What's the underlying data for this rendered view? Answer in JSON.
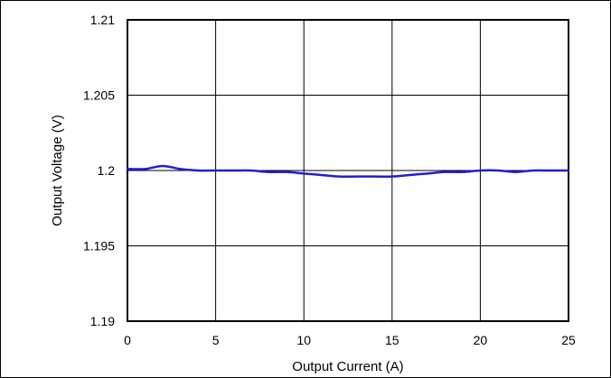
{
  "chart_data": {
    "type": "line",
    "title": "",
    "xlabel": "Output Current (A)",
    "ylabel": "Output Voltage (V)",
    "xlim": [
      0,
      25
    ],
    "ylim": [
      1.19,
      1.21
    ],
    "x_ticks": [
      0,
      5,
      10,
      15,
      20,
      25
    ],
    "x_tick_labels": [
      "0",
      "5",
      "10",
      "15",
      "20",
      "25"
    ],
    "y_ticks": [
      1.19,
      1.195,
      1.2,
      1.205,
      1.21
    ],
    "y_tick_labels": [
      "1.19",
      "1.195",
      "1.2",
      "1.205",
      "1.21"
    ],
    "grid": true,
    "series": [
      {
        "color": "#1f1fcc",
        "x": [
          0,
          1,
          2,
          3,
          4,
          5,
          6,
          7,
          8,
          9,
          10,
          11,
          12,
          13,
          14,
          15,
          16,
          17,
          18,
          19,
          20,
          21,
          22,
          23,
          24,
          25
        ],
        "values": [
          1.2001,
          1.2001,
          1.2003,
          1.2001,
          1.2,
          1.2,
          1.2,
          1.2,
          1.1999,
          1.1999,
          1.1998,
          1.1997,
          1.1996,
          1.1996,
          1.1996,
          1.1996,
          1.1997,
          1.1998,
          1.1999,
          1.1999,
          1.2,
          1.2,
          1.1999,
          1.2,
          1.2,
          1.2
        ]
      }
    ]
  }
}
